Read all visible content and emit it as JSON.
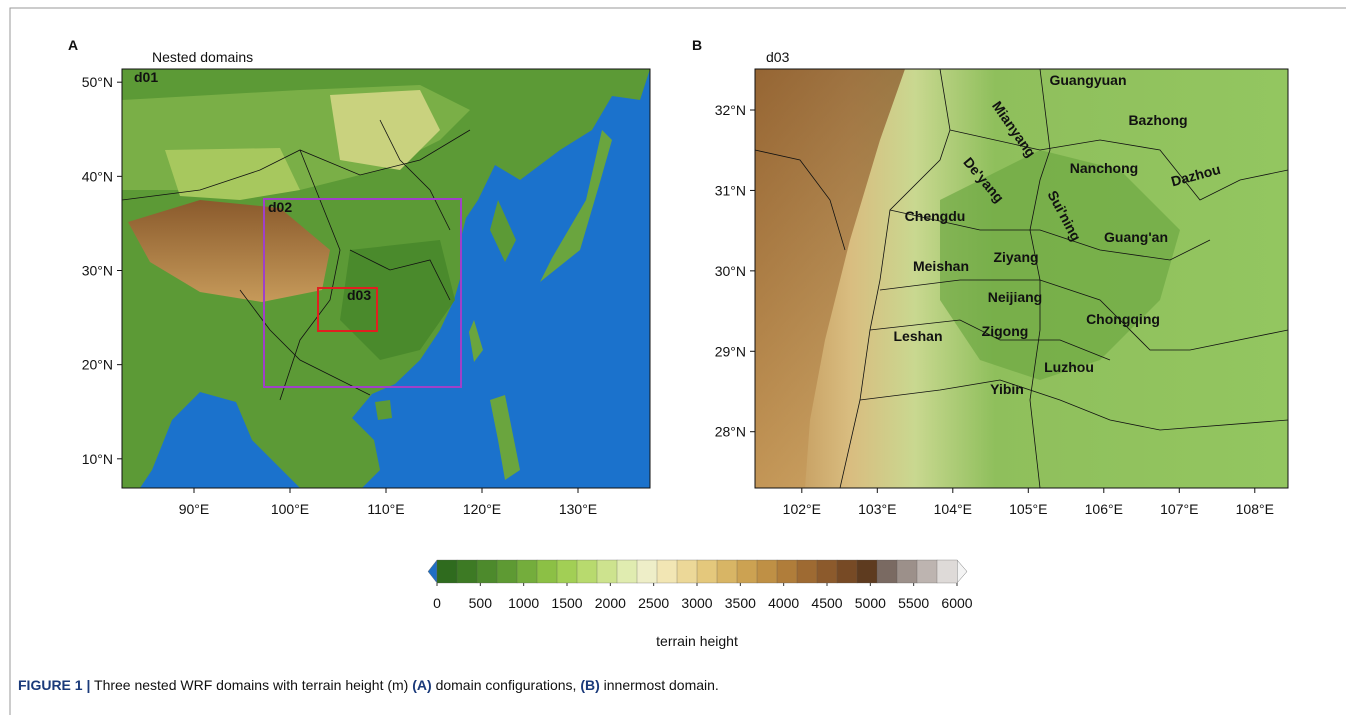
{
  "panels": [
    {
      "letter": "A",
      "title": "Nested domains",
      "xlim": [
        82.5,
        137.5
      ],
      "ylim": [
        6.9,
        51.4
      ],
      "xticks": [
        {
          "value": 90,
          "label": "90°E"
        },
        {
          "value": 100,
          "label": "100°E"
        },
        {
          "value": 110,
          "label": "110°E"
        },
        {
          "value": 120,
          "label": "120°E"
        },
        {
          "value": 130,
          "label": "130°E"
        }
      ],
      "yticks": [
        {
          "value": 10,
          "label": "10°N"
        },
        {
          "value": 20,
          "label": "20°N"
        },
        {
          "value": 30,
          "label": "30°N"
        },
        {
          "value": 40,
          "label": "40°N"
        },
        {
          "value": 50,
          "label": "50°N"
        }
      ],
      "domain_labels": [
        "d01",
        "d02",
        "d03"
      ]
    },
    {
      "letter": "B",
      "title": "d03",
      "xlim": [
        101.38,
        108.44
      ],
      "ylim": [
        27.3,
        32.51
      ],
      "xticks": [
        {
          "value": 102,
          "label": "102°E"
        },
        {
          "value": 103,
          "label": "103°E"
        },
        {
          "value": 104,
          "label": "104°E"
        },
        {
          "value": 105,
          "label": "105°E"
        },
        {
          "value": 106,
          "label": "106°E"
        },
        {
          "value": 107,
          "label": "107°E"
        },
        {
          "value": 108,
          "label": "108°E"
        }
      ],
      "yticks": [
        {
          "value": 28,
          "label": "28°N"
        },
        {
          "value": 29,
          "label": "29°N"
        },
        {
          "value": 30,
          "label": "30°N"
        },
        {
          "value": 31,
          "label": "31°N"
        },
        {
          "value": 32,
          "label": "32°N"
        }
      ],
      "cities": [
        "Guangyuan",
        "Bazhong",
        "Mianyang",
        "Nanchong",
        "Dazhou",
        "De'yang",
        "Sui'ning",
        "Chengdu",
        "Guang'an",
        "Ziyang",
        "Meishan",
        "Neijiang",
        "Chongqing",
        "Zigong",
        "Leshan",
        "Luzhou",
        "Yibin"
      ]
    }
  ],
  "colorbar": {
    "ticks": [
      0,
      500,
      1000,
      1500,
      2000,
      2500,
      3000,
      3500,
      4000,
      4500,
      5000,
      5500,
      6000
    ],
    "below_color": "#1f6fc5",
    "above_color": "#f4f4f4",
    "colors": [
      "#2f6b1e",
      "#3d7a24",
      "#4d8a2c",
      "#5e9a33",
      "#74ad3c",
      "#8cc045",
      "#a2cf55",
      "#b8da6e",
      "#cde38e",
      "#e0ecb0",
      "#eeeec8",
      "#f2e6b4",
      "#ecd898",
      "#e4c87c",
      "#d8b565",
      "#cca252",
      "#bf9045",
      "#b07d3a",
      "#9e6a32",
      "#8c5a2c",
      "#774a25",
      "#5e3b1f",
      "#7a6a62",
      "#9c908a",
      "#bdb4b0",
      "#dedad8"
    ],
    "label": "terrain height"
  },
  "caption": [
    {
      "text": "FIGURE 1 |",
      "bold": true
    },
    {
      "text": " Three nested WRF domains with terrain height (m) ",
      "bold": false
    },
    {
      "text": "(A)",
      "bold": true
    },
    {
      "text": " domain configurations, ",
      "bold": false
    },
    {
      "text": "(B)",
      "bold": true
    },
    {
      "text": " innermost domain.",
      "bold": false
    }
  ]
}
